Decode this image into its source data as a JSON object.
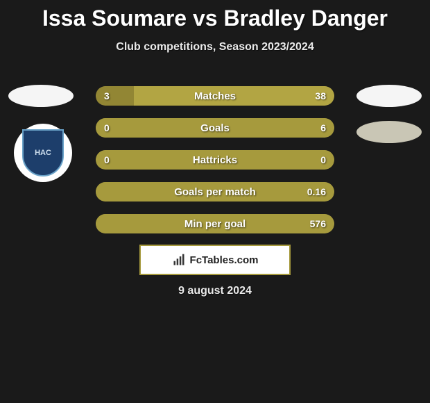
{
  "title": "Issa Soumare vs Bradley Danger",
  "subtitle": "Club competitions, Season 2023/2024",
  "date": "9 august 2024",
  "footer_label": "FcTables.com",
  "footer_box": {
    "background": "#ffffff",
    "border_color": "#a69a3d",
    "text_color": "#222222"
  },
  "background_color": "#1a1a1a",
  "title_fontsize": 32,
  "subtitle_fontsize": 16,
  "left_club": {
    "label": "HAC",
    "bg": "#1d3e6b",
    "border": "#6aa3c9"
  },
  "colors": {
    "player1": "#a69a3d",
    "player2": "#b7aa45",
    "bar_bg_empty": "#a69a3d"
  },
  "bars": [
    {
      "label": "Matches",
      "left_value": "3",
      "right_value": "38",
      "left_pct": 16,
      "right_pct": 84,
      "left_color": "#928634",
      "right_color": "#b2a543"
    },
    {
      "label": "Goals",
      "left_value": "0",
      "right_value": "6",
      "left_pct": 0,
      "right_pct": 100,
      "left_color": "#a69a3d",
      "right_color": "#a69a3d"
    },
    {
      "label": "Hattricks",
      "left_value": "0",
      "right_value": "0",
      "left_pct": 50,
      "right_pct": 50,
      "left_color": "#a69a3d",
      "right_color": "#a69a3d"
    },
    {
      "label": "Goals per match",
      "left_value": "",
      "right_value": "0.16",
      "left_pct": 0,
      "right_pct": 100,
      "left_color": "#a69a3d",
      "right_color": "#a69a3d"
    },
    {
      "label": "Min per goal",
      "left_value": "",
      "right_value": "576",
      "left_pct": 0,
      "right_pct": 100,
      "left_color": "#a69a3d",
      "right_color": "#a69a3d"
    }
  ]
}
